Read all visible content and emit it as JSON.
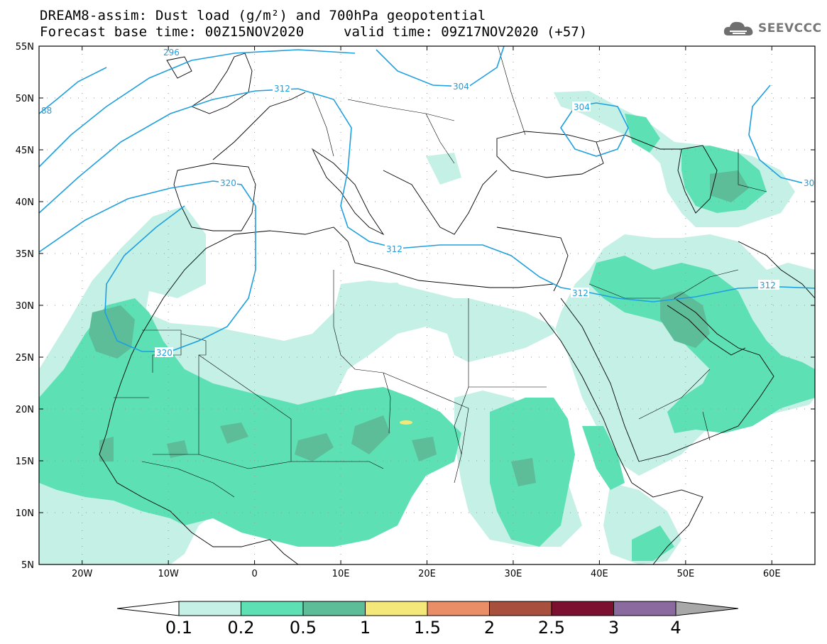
{
  "header": {
    "title_line1": "DREAM8-assim: Dust load (g/m²) and 700hPa geopotential",
    "title_line2a": "Forecast base time: 00Z15NOV2020",
    "title_line2b": "valid time: 09Z17NOV2020 (+57)",
    "logo_text": "SEEVCCC",
    "logo_icon": "cloud-logo-icon"
  },
  "axes": {
    "lon_labels": [
      "20W",
      "10W",
      "0",
      "10E",
      "20E",
      "30E",
      "40E",
      "50E",
      "60E"
    ],
    "lat_labels": [
      "55N",
      "50N",
      "45N",
      "40N",
      "35N",
      "30N",
      "25N",
      "20N",
      "15N",
      "10N",
      "5N"
    ],
    "lon_range": [
      -25,
      65
    ],
    "lat_range": [
      5,
      55
    ]
  },
  "contours": {
    "color": "#1e9fe0",
    "labels": [
      "296",
      "312",
      "304",
      "304",
      "320",
      "312",
      "312",
      "312",
      "320",
      "88",
      "30"
    ]
  },
  "colorbar": {
    "tick_labels": [
      "0.1",
      "0.2",
      "0.5",
      "1",
      "1.5",
      "2",
      "2.5",
      "3",
      "4"
    ],
    "colors": [
      "#c4f0e6",
      "#5ee0b5",
      "#5cbd98",
      "#f5e87a",
      "#ea8e68",
      "#a84f3e",
      "#7c1030",
      "#8b6aa0"
    ],
    "under_color": "#ffffff",
    "over_color": "#a8a8a8"
  },
  "dust_colors": {
    "low": "#c4f0e6",
    "mid": "#5ee0b5",
    "high": "#5cbd98",
    "peak": "#f5e87a"
  }
}
